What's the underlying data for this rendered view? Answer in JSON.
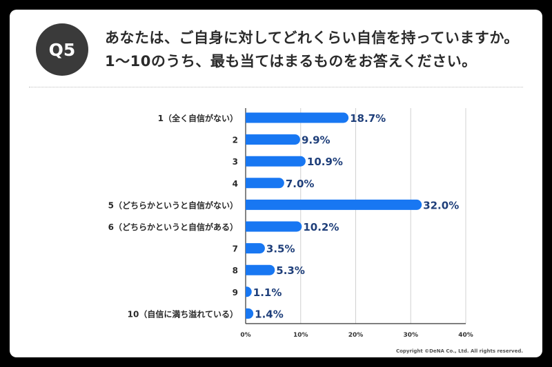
{
  "badge": "Q5",
  "question": {
    "line1": "あなたは、ご自身に対してどれくらい自信を持っていますか。",
    "line2": "1〜10のうち、最も当てはまるものをお答えください。"
  },
  "copyright": "Copyright ©DeNA Co., Ltd. All rights reserved.",
  "colors": {
    "bar": "#1877F2",
    "value_label": "#1F3F7A",
    "badge": "#3A3A3A"
  },
  "chart_data": {
    "type": "bar",
    "orientation": "horizontal",
    "categories": [
      "1（全く自信がない）",
      "2",
      "3",
      "4",
      "5（どちらかというと自信がない）",
      "6（どちらかというと自信がある）",
      "7",
      "8",
      "9",
      "10（自信に満ち溢れている）"
    ],
    "values": [
      18.7,
      9.9,
      10.9,
      7.0,
      32.0,
      10.2,
      3.5,
      5.3,
      1.1,
      1.4
    ],
    "value_labels": [
      "18.7%",
      "9.9%",
      "10.9%",
      "7.0%",
      "32.0%",
      "10.2%",
      "3.5%",
      "5.3%",
      "1.1%",
      "1.4%"
    ],
    "xlim": [
      0,
      40
    ],
    "xticks": [
      0,
      10,
      20,
      30,
      40
    ],
    "xtick_labels": [
      "0%",
      "10%",
      "20%",
      "30%",
      "40%"
    ],
    "grid": true
  }
}
